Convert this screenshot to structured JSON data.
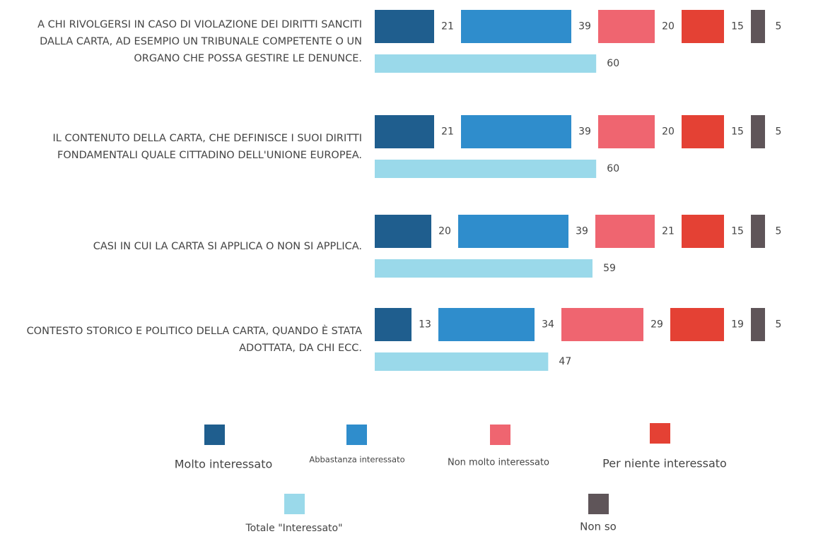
{
  "chart_data": {
    "type": "bar",
    "categories": [
      "A CHI RIVOLGERSI IN CASO DI VIOLAZIONE DEI DIRITTI SANCITI DALLA CARTA, AD ESEMPIO UN TRIBUNALE COMPETENTE O UN ORGANO CHE POSSA GESTIRE LE DENUNCE.",
      "IL CONTENUTO DELLA CARTA, CHE DEFINISCE I SUOI DIRITTI FONDAMENTALI QUALE CITTADINO DELL'UNIONE EUROPEA.",
      "CASI IN CUI LA CARTA SI APPLICA O NON SI APPLICA.",
      "CONTESTO STORICO E POLITICO DELLA CARTA, QUANDO È STATA ADOTTATA, DA CHI ECC."
    ],
    "series": [
      {
        "name": "Molto interessato",
        "color": "#1f5e8e",
        "values": [
          21,
          21,
          20,
          13
        ]
      },
      {
        "name": "Abbastanza interessato",
        "color": "#2f8dcc",
        "values": [
          39,
          39,
          39,
          34
        ]
      },
      {
        "name": "Non molto interessato",
        "color": "#ef6570",
        "values": [
          20,
          20,
          21,
          29
        ]
      },
      {
        "name": "Per niente interessato",
        "color": "#e44134",
        "values": [
          15,
          15,
          15,
          19
        ]
      },
      {
        "name": "Non so",
        "color": "#5f5559",
        "values": [
          5,
          5,
          5,
          5
        ]
      },
      {
        "name": "Totale \"Interessato\"",
        "color": "#9ad9ea",
        "values": [
          60,
          60,
          59,
          47
        ]
      }
    ]
  }
}
